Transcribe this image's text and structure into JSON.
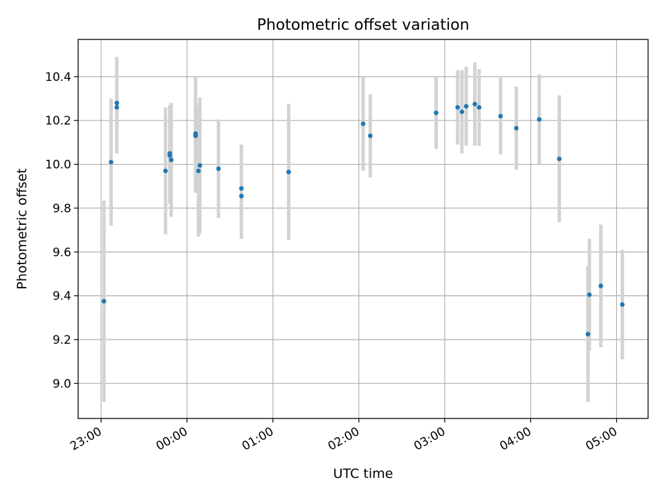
{
  "chart_data": {
    "type": "scatter",
    "title": "Photometric offset variation",
    "xlabel": "UTC time",
    "ylabel": "Photometric offset",
    "x_axis": {
      "scale": "time",
      "range": [
        "22:44",
        "05:22"
      ],
      "ticks": [
        "23:00",
        "00:00",
        "01:00",
        "02:00",
        "03:00",
        "04:00",
        "05:00"
      ],
      "tick_rotation_deg": 30
    },
    "y_axis": {
      "range": [
        8.84,
        10.57
      ],
      "ticks": [
        "9.0",
        "9.2",
        "9.4",
        "9.6",
        "9.8",
        "10.0",
        "10.2",
        "10.4"
      ]
    },
    "grid": true,
    "marker_color": "#1f77b4",
    "errorbar_color": "#d3d3d3",
    "series": [
      {
        "points": [
          {
            "t": "23:02",
            "y": 9.375,
            "err": 0.46
          },
          {
            "t": "23:07",
            "y": 10.01,
            "err": 0.29
          },
          {
            "t": "23:11",
            "y": 10.28,
            "err": 0.21
          },
          {
            "t": "23:11",
            "y": 10.26,
            "err": 0.21
          },
          {
            "t": "23:45",
            "y": 9.97,
            "err": 0.29
          },
          {
            "t": "23:48",
            "y": 10.04,
            "err": 0.22
          },
          {
            "t": "23:48",
            "y": 10.05,
            "err": 0.22
          },
          {
            "t": "23:49",
            "y": 10.02,
            "err": 0.26
          },
          {
            "t": "00:06",
            "y": 10.13,
            "err": 0.26
          },
          {
            "t": "00:06",
            "y": 10.14,
            "err": 0.26
          },
          {
            "t": "00:08",
            "y": 9.97,
            "err": 0.3
          },
          {
            "t": "00:09",
            "y": 9.995,
            "err": 0.31
          },
          {
            "t": "00:22",
            "y": 9.98,
            "err": 0.225
          },
          {
            "t": "00:38",
            "y": 9.89,
            "err": 0.2
          },
          {
            "t": "00:38",
            "y": 9.855,
            "err": 0.195
          },
          {
            "t": "01:11",
            "y": 9.965,
            "err": 0.31
          },
          {
            "t": "02:03",
            "y": 10.185,
            "err": 0.215
          },
          {
            "t": "02:08",
            "y": 10.13,
            "err": 0.19
          },
          {
            "t": "02:54",
            "y": 10.235,
            "err": 0.165
          },
          {
            "t": "03:09",
            "y": 10.26,
            "err": 0.17
          },
          {
            "t": "03:12",
            "y": 10.24,
            "err": 0.19
          },
          {
            "t": "03:15",
            "y": 10.265,
            "err": 0.18
          },
          {
            "t": "03:21",
            "y": 10.275,
            "err": 0.19
          },
          {
            "t": "03:24",
            "y": 10.26,
            "err": 0.175
          },
          {
            "t": "03:39",
            "y": 10.22,
            "err": 0.175
          },
          {
            "t": "03:50",
            "y": 10.165,
            "err": 0.19
          },
          {
            "t": "04:06",
            "y": 10.205,
            "err": 0.205
          },
          {
            "t": "04:20",
            "y": 10.025,
            "err": 0.29
          },
          {
            "t": "04:40",
            "y": 9.225,
            "err": 0.31
          },
          {
            "t": "04:41",
            "y": 9.405,
            "err": 0.255
          },
          {
            "t": "04:49",
            "y": 9.445,
            "err": 0.28
          },
          {
            "t": "05:04",
            "y": 9.36,
            "err": 0.25
          }
        ]
      }
    ]
  }
}
